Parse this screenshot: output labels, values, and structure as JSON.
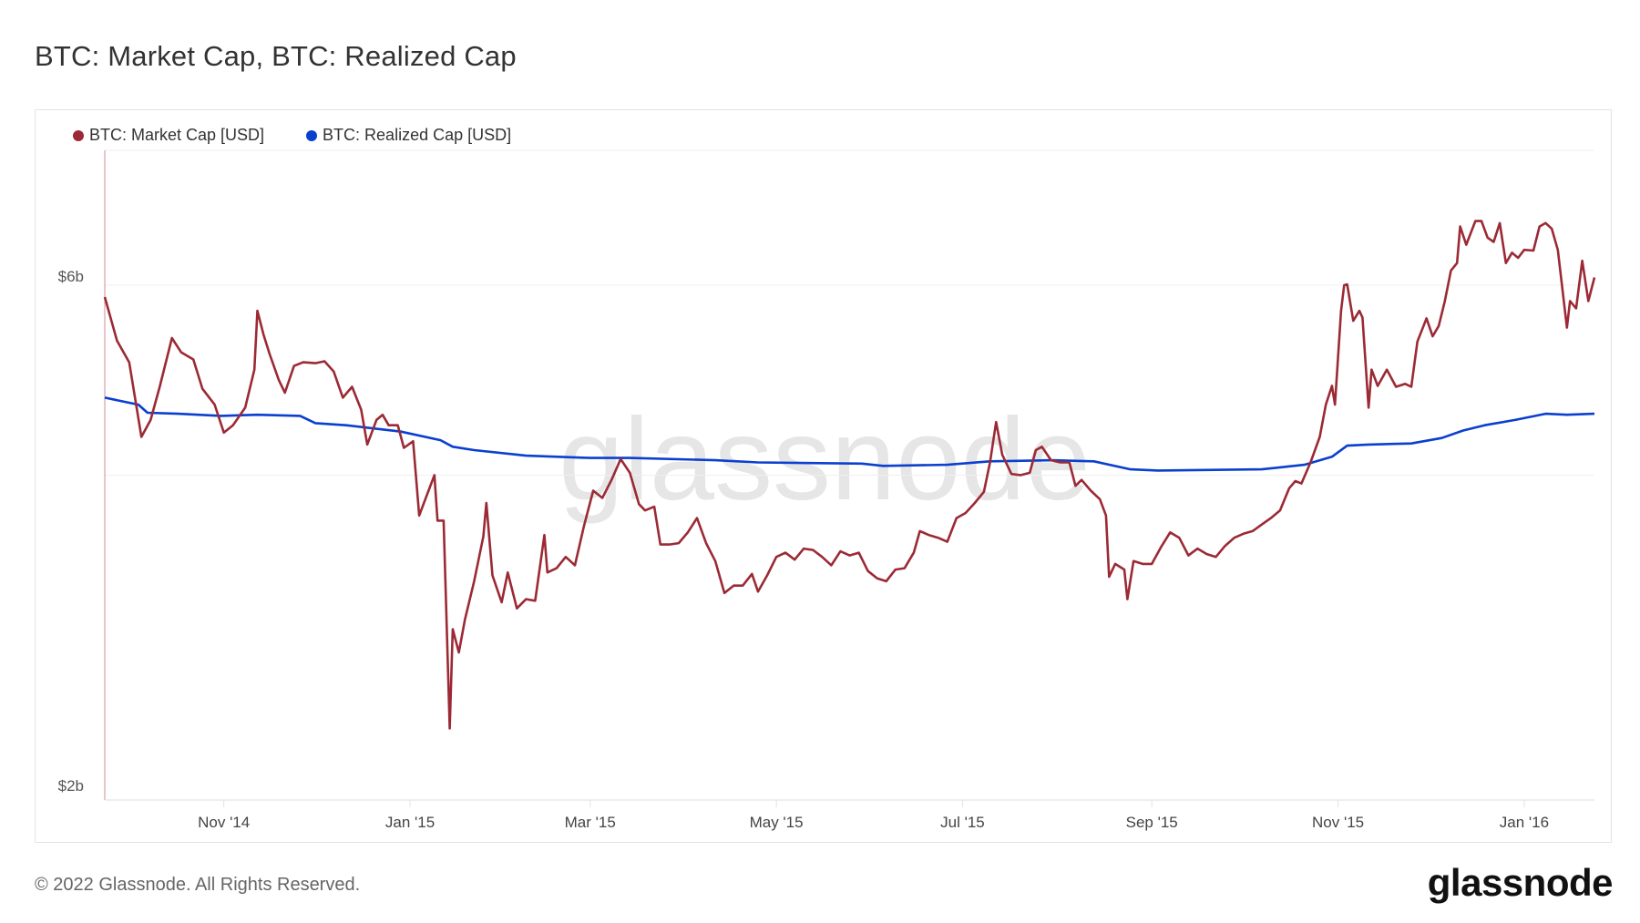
{
  "title": "BTC: Market Cap, BTC: Realized Cap",
  "footer": "© 2022 Glassnode. All Rights Reserved.",
  "logo_text": "glassnode",
  "watermark_text": "glassnode",
  "chart_data": {
    "type": "line",
    "title": "BTC: Market Cap, BTC: Realized Cap",
    "xlabel": "",
    "ylabel": "",
    "x_range": [
      "2014-09-23",
      "2016-01-24"
    ],
    "y_scale": "log",
    "ylim": [
      2,
      8
    ],
    "y_unit": "USD billions",
    "y_gridlines": [
      2,
      4,
      6,
      8
    ],
    "y_tick_labels": [
      {
        "value": 6,
        "label": "$6b"
      },
      {
        "value": 2,
        "label": "$2b"
      }
    ],
    "x_tick_labels": [
      {
        "date": "2014-11-01",
        "label": "Nov '14"
      },
      {
        "date": "2015-01-01",
        "label": "Jan '15"
      },
      {
        "date": "2015-03-01",
        "label": "Mar '15"
      },
      {
        "date": "2015-05-01",
        "label": "May '15"
      },
      {
        "date": "2015-07-01",
        "label": "Jul '15"
      },
      {
        "date": "2015-09-01",
        "label": "Sep '15"
      },
      {
        "date": "2015-11-01",
        "label": "Nov '15"
      },
      {
        "date": "2016-01-01",
        "label": "Jan '16"
      }
    ],
    "grid": true,
    "legend_position": "top-left",
    "series": [
      {
        "name": "BTC: Market Cap [USD]",
        "color": "#9b2a35",
        "x": [
          "2014-09-23",
          "2014-09-27",
          "2014-10-01",
          "2014-10-05",
          "2014-10-08",
          "2014-10-11",
          "2014-10-15",
          "2014-10-18",
          "2014-10-22",
          "2014-10-25",
          "2014-10-29",
          "2014-11-01",
          "2014-11-04",
          "2014-11-08",
          "2014-11-11",
          "2014-11-12",
          "2014-11-14",
          "2014-11-16",
          "2014-11-19",
          "2014-11-21",
          "2014-11-24",
          "2014-11-27",
          "2014-12-01",
          "2014-12-04",
          "2014-12-07",
          "2014-12-10",
          "2014-12-13",
          "2014-12-16",
          "2014-12-18",
          "2014-12-21",
          "2014-12-23",
          "2014-12-25",
          "2014-12-28",
          "2014-12-30",
          "2015-01-02",
          "2015-01-04",
          "2015-01-06",
          "2015-01-09",
          "2015-01-10",
          "2015-01-12",
          "2015-01-14",
          "2015-01-15",
          "2015-01-17",
          "2015-01-19",
          "2015-01-22",
          "2015-01-25",
          "2015-01-26",
          "2015-01-28",
          "2015-01-31",
          "2015-02-02",
          "2015-02-05",
          "2015-02-08",
          "2015-02-11",
          "2015-02-14",
          "2015-02-15",
          "2015-02-18",
          "2015-02-21",
          "2015-02-24",
          "2015-02-27",
          "2015-03-02",
          "2015-03-05",
          "2015-03-08",
          "2015-03-11",
          "2015-03-14",
          "2015-03-17",
          "2015-03-19",
          "2015-03-22",
          "2015-03-24",
          "2015-03-27",
          "2015-03-30",
          "2015-04-02",
          "2015-04-05",
          "2015-04-08",
          "2015-04-11",
          "2015-04-14",
          "2015-04-17",
          "2015-04-20",
          "2015-04-23",
          "2015-04-25",
          "2015-04-28",
          "2015-05-01",
          "2015-05-04",
          "2015-05-07",
          "2015-05-10",
          "2015-05-13",
          "2015-05-16",
          "2015-05-19",
          "2015-05-22",
          "2015-05-25",
          "2015-05-28",
          "2015-05-31",
          "2015-06-03",
          "2015-06-06",
          "2015-06-09",
          "2015-06-12",
          "2015-06-15",
          "2015-06-17",
          "2015-06-20",
          "2015-06-23",
          "2015-06-26",
          "2015-06-29",
          "2015-07-02",
          "2015-07-05",
          "2015-07-08",
          "2015-07-10",
          "2015-07-12",
          "2015-07-14",
          "2015-07-17",
          "2015-07-20",
          "2015-07-23",
          "2015-07-25",
          "2015-07-27",
          "2015-07-30",
          "2015-08-02",
          "2015-08-05",
          "2015-08-07",
          "2015-08-09",
          "2015-08-12",
          "2015-08-15",
          "2015-08-17",
          "2015-08-18",
          "2015-08-20",
          "2015-08-23",
          "2015-08-24",
          "2015-08-26",
          "2015-08-29",
          "2015-09-01",
          "2015-09-04",
          "2015-09-07",
          "2015-09-10",
          "2015-09-13",
          "2015-09-16",
          "2015-09-19",
          "2015-09-22",
          "2015-09-25",
          "2015-09-28",
          "2015-10-01",
          "2015-10-04",
          "2015-10-07",
          "2015-10-10",
          "2015-10-13",
          "2015-10-16",
          "2015-10-18",
          "2015-10-20",
          "2015-10-23",
          "2015-10-26",
          "2015-10-28",
          "2015-10-30",
          "2015-10-31",
          "2015-11-02",
          "2015-11-03",
          "2015-11-04",
          "2015-11-06",
          "2015-11-08",
          "2015-11-09",
          "2015-11-11",
          "2015-11-12",
          "2015-11-14",
          "2015-11-17",
          "2015-11-20",
          "2015-11-23",
          "2015-11-25",
          "2015-11-27",
          "2015-11-30",
          "2015-12-02",
          "2015-12-04",
          "2015-12-06",
          "2015-12-08",
          "2015-12-10",
          "2015-12-11",
          "2015-12-13",
          "2015-12-16",
          "2015-12-18",
          "2015-12-20",
          "2015-12-22",
          "2015-12-24",
          "2015-12-26",
          "2015-12-28",
          "2015-12-30",
          "2016-01-01",
          "2016-01-04",
          "2016-01-06",
          "2016-01-08",
          "2016-01-10",
          "2016-01-12",
          "2016-01-15",
          "2016-01-16",
          "2016-01-18",
          "2016-01-20",
          "2016-01-22",
          "2016-01-24"
        ],
        "values": [
          5.85,
          5.33,
          5.09,
          4.34,
          4.5,
          4.83,
          5.36,
          5.2,
          5.12,
          4.81,
          4.65,
          4.38,
          4.45,
          4.62,
          5.01,
          5.68,
          5.4,
          5.18,
          4.9,
          4.77,
          5.05,
          5.09,
          5.08,
          5.1,
          4.99,
          4.72,
          4.83,
          4.6,
          4.27,
          4.5,
          4.55,
          4.45,
          4.45,
          4.24,
          4.3,
          3.67,
          3.8,
          4.0,
          3.63,
          3.63,
          2.33,
          2.88,
          2.74,
          2.94,
          3.19,
          3.51,
          3.77,
          3.23,
          3.05,
          3.25,
          3.01,
          3.07,
          3.06,
          3.52,
          3.25,
          3.28,
          3.36,
          3.3,
          3.59,
          3.87,
          3.81,
          3.96,
          4.14,
          4.02,
          3.76,
          3.71,
          3.74,
          3.45,
          3.45,
          3.46,
          3.54,
          3.65,
          3.46,
          3.33,
          3.11,
          3.16,
          3.16,
          3.24,
          3.12,
          3.23,
          3.36,
          3.39,
          3.34,
          3.42,
          3.41,
          3.36,
          3.3,
          3.4,
          3.37,
          3.39,
          3.26,
          3.21,
          3.19,
          3.27,
          3.28,
          3.39,
          3.55,
          3.52,
          3.5,
          3.47,
          3.65,
          3.69,
          3.77,
          3.86,
          4.11,
          4.48,
          4.18,
          4.01,
          4.0,
          4.02,
          4.22,
          4.25,
          4.13,
          4.11,
          4.11,
          3.91,
          3.96,
          3.87,
          3.8,
          3.67,
          3.22,
          3.31,
          3.27,
          3.07,
          3.33,
          3.31,
          3.31,
          3.43,
          3.54,
          3.5,
          3.37,
          3.42,
          3.38,
          3.36,
          3.44,
          3.5,
          3.53,
          3.55,
          3.6,
          3.65,
          3.71,
          3.89,
          3.95,
          3.93,
          4.11,
          4.34,
          4.65,
          4.84,
          4.65,
          5.68,
          6.0,
          6.01,
          5.56,
          5.68,
          5.6,
          4.62,
          5.01,
          4.84,
          5.01,
          4.83,
          4.86,
          4.83,
          5.32,
          5.59,
          5.38,
          5.5,
          5.8,
          6.19,
          6.29,
          6.8,
          6.54,
          6.88,
          6.88,
          6.64,
          6.58,
          6.85,
          6.29,
          6.43,
          6.36,
          6.47,
          6.46,
          6.8,
          6.85,
          6.77,
          6.47,
          5.48,
          5.8,
          5.71,
          6.32,
          5.8,
          6.1
        ]
      },
      {
        "name": "BTC: Realized Cap [USD]",
        "color": "#0a3fcf",
        "x": [
          "2014-09-23",
          "2014-10-04",
          "2014-10-07",
          "2014-10-17",
          "2014-10-31",
          "2014-11-12",
          "2014-11-26",
          "2014-12-01",
          "2014-12-11",
          "2014-12-29",
          "2015-01-11",
          "2015-01-15",
          "2015-01-22",
          "2015-02-08",
          "2015-03-01",
          "2015-03-14",
          "2015-04-11",
          "2015-04-25",
          "2015-05-29",
          "2015-06-05",
          "2015-06-26",
          "2015-07-10",
          "2015-07-30",
          "2015-08-13",
          "2015-08-25",
          "2015-09-03",
          "2015-10-07",
          "2015-10-21",
          "2015-10-30",
          "2015-11-04",
          "2015-11-11",
          "2015-11-25",
          "2015-12-05",
          "2015-12-12",
          "2015-12-19",
          "2015-12-29",
          "2016-01-08",
          "2016-01-15",
          "2016-01-24"
        ],
        "values": [
          4.72,
          4.65,
          4.57,
          4.56,
          4.54,
          4.55,
          4.54,
          4.47,
          4.45,
          4.39,
          4.31,
          4.25,
          4.22,
          4.17,
          4.15,
          4.15,
          4.13,
          4.11,
          4.1,
          4.08,
          4.09,
          4.12,
          4.13,
          4.12,
          4.05,
          4.04,
          4.05,
          4.09,
          4.16,
          4.26,
          4.27,
          4.28,
          4.33,
          4.4,
          4.45,
          4.5,
          4.56,
          4.55,
          4.56
        ]
      }
    ]
  }
}
